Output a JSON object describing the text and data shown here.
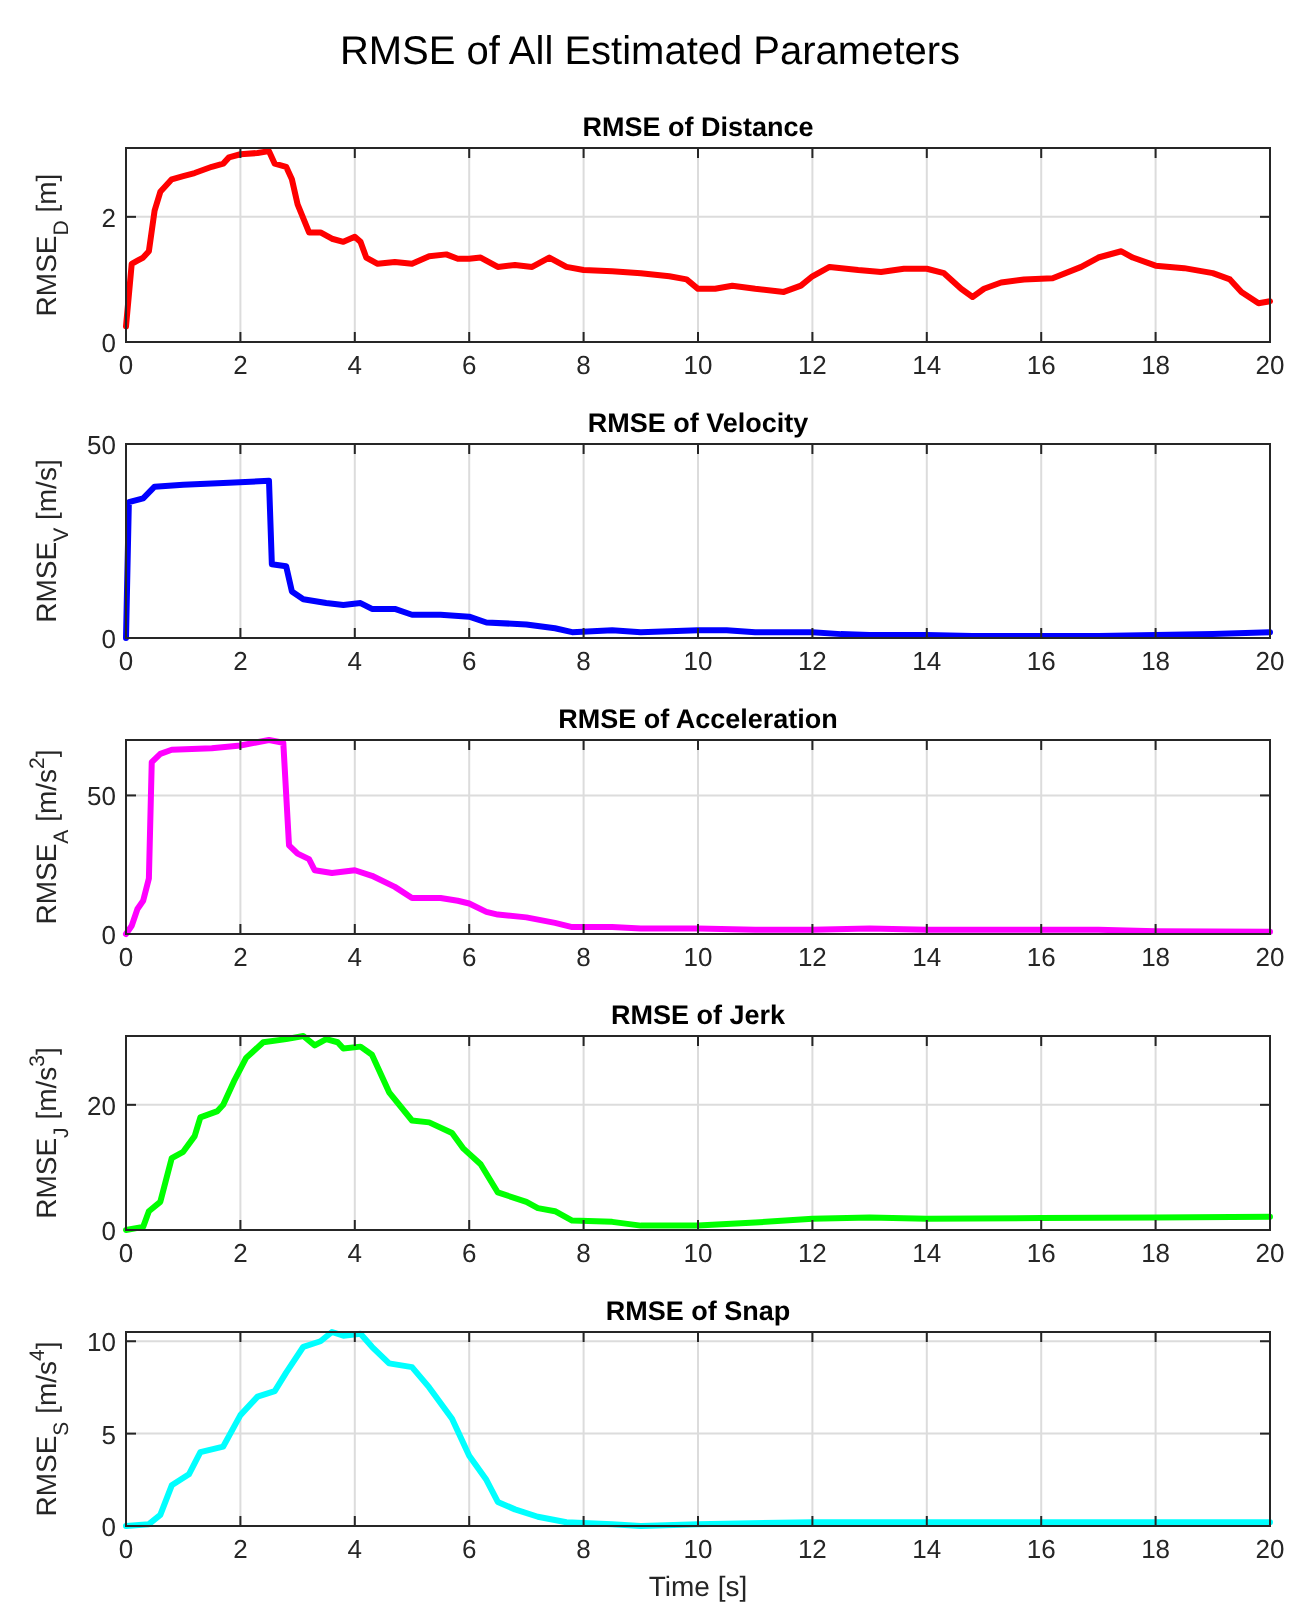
{
  "chart_data": [
    {
      "type": "other",
      "title": "RMSE of All Estimated Parameters"
    },
    {
      "type": "line",
      "title": "RMSE of Distance",
      "ylabel": "RMSE$_{D}$ [m]",
      "xlim": [
        0,
        20
      ],
      "xticks": [
        0,
        2,
        4,
        6,
        8,
        10,
        12,
        14,
        16,
        18,
        20
      ],
      "ylim": [
        0,
        3.1
      ],
      "yticks": [
        0,
        2
      ],
      "grid": true,
      "marker": "none",
      "line_style": "solid",
      "x": [
        0,
        0.1,
        0.2,
        0.3,
        0.4,
        0.5,
        0.6,
        0.8,
        1,
        1.2,
        1.5,
        1.7,
        1.8,
        2,
        2.3,
        2.5,
        2.6,
        2.8,
        2.9,
        3.0,
        3.2,
        3.4,
        3.6,
        3.8,
        4,
        4.1,
        4.2,
        4.4,
        4.7,
        5,
        5.3,
        5.6,
        5.8,
        6,
        6.2,
        6.5,
        6.8,
        7.1,
        7.4,
        7.7,
        8,
        8.5,
        9,
        9.5,
        9.8,
        10,
        10.3,
        10.6,
        11,
        11.5,
        11.8,
        12,
        12.3,
        12.8,
        13.2,
        13.6,
        14,
        14.3,
        14.6,
        14.8,
        15,
        15.3,
        15.7,
        16.2,
        16.7,
        17,
        17.4,
        17.6,
        18,
        18.5,
        19,
        19.3,
        19.5,
        19.8,
        20
      ],
      "series": [
        {
          "color": "#ff0000",
          "values": [
            0.25,
            1.25,
            1.3,
            1.35,
            1.45,
            2.1,
            2.4,
            2.6,
            2.65,
            2.7,
            2.8,
            2.85,
            2.95,
            3.0,
            3.02,
            3.05,
            2.85,
            2.8,
            2.6,
            2.2,
            1.75,
            1.75,
            1.65,
            1.6,
            1.68,
            1.6,
            1.35,
            1.25,
            1.28,
            1.25,
            1.37,
            1.4,
            1.33,
            1.33,
            1.35,
            1.2,
            1.23,
            1.2,
            1.35,
            1.2,
            1.15,
            1.13,
            1.1,
            1.05,
            1.0,
            0.85,
            0.85,
            0.9,
            0.85,
            0.8,
            0.9,
            1.05,
            1.2,
            1.15,
            1.12,
            1.17,
            1.17,
            1.1,
            0.85,
            0.72,
            0.85,
            0.95,
            1.0,
            1.02,
            1.2,
            1.35,
            1.45,
            1.35,
            1.22,
            1.18,
            1.1,
            1.0,
            0.8,
            0.62,
            0.65
          ]
        }
      ]
    },
    {
      "type": "line",
      "title": "RMSE of Velocity",
      "ylabel": "RMSE$_{V}$ [m/s]",
      "xlim": [
        0,
        20
      ],
      "xticks": [
        0,
        2,
        4,
        6,
        8,
        10,
        12,
        14,
        16,
        18,
        20
      ],
      "ylim": [
        0,
        50
      ],
      "yticks": [
        0,
        50
      ],
      "grid": true,
      "marker": "none",
      "line_style": "solid",
      "x": [
        0,
        0.05,
        0.3,
        0.5,
        1,
        1.8,
        2.5,
        2.55,
        2.8,
        2.9,
        3.1,
        3.5,
        3.8,
        4.1,
        4.3,
        4.7,
        5,
        5.5,
        6,
        6.3,
        7,
        7.5,
        7.8,
        8.5,
        9,
        10,
        10.5,
        11,
        12,
        12.5,
        13,
        14,
        14.8,
        16,
        17,
        18,
        19,
        20
      ],
      "series": [
        {
          "color": "#0000ff",
          "values": [
            0,
            35,
            36,
            39,
            39.5,
            40,
            40.5,
            19,
            18.5,
            12,
            10,
            9,
            8.5,
            9,
            7.5,
            7.5,
            6,
            6,
            5.5,
            4,
            3.5,
            2.5,
            1.5,
            2,
            1.5,
            2,
            2,
            1.5,
            1.5,
            1,
            0.8,
            0.8,
            0.5,
            0.5,
            0.5,
            0.8,
            1,
            1.5
          ]
        }
      ]
    },
    {
      "type": "line",
      "title": "RMSE of Acceleration",
      "ylabel": "RMSE$_{A}$ [m/s$^{2}$]",
      "xlim": [
        0,
        20
      ],
      "xticks": [
        0,
        2,
        4,
        6,
        8,
        10,
        12,
        14,
        16,
        18,
        20
      ],
      "ylim": [
        0,
        70
      ],
      "yticks": [
        0,
        50
      ],
      "grid": true,
      "marker": "none",
      "line_style": "solid",
      "x": [
        0,
        0.1,
        0.2,
        0.3,
        0.4,
        0.45,
        0.6,
        0.8,
        1.5,
        2,
        2.5,
        2.75,
        2.85,
        3,
        3.2,
        3.3,
        3.6,
        4,
        4.3,
        4.7,
        5,
        5.5,
        5.8,
        6,
        6.3,
        6.5,
        7,
        7.5,
        7.8,
        8.5,
        9,
        10,
        11,
        12,
        13,
        14,
        15,
        17,
        18,
        20
      ],
      "series": [
        {
          "color": "#ff00ff",
          "values": [
            0,
            3,
            9,
            12,
            20,
            62,
            65,
            66.5,
            67,
            68,
            70,
            69,
            32,
            29,
            27,
            23,
            22,
            23,
            21,
            17,
            13,
            13,
            12,
            11,
            8,
            7,
            6,
            4,
            2.5,
            2.5,
            2,
            2,
            1.5,
            1.5,
            2,
            1.5,
            1.5,
            1.5,
            1,
            0.8
          ]
        }
      ]
    },
    {
      "type": "line",
      "title": "RMSE of Jerk",
      "ylabel": "RMSE$_{J}$ [m/s$^{3}$]",
      "xlim": [
        0,
        20
      ],
      "xticks": [
        0,
        2,
        4,
        6,
        8,
        10,
        12,
        14,
        16,
        18,
        20
      ],
      "ylim": [
        0,
        31
      ],
      "yticks": [
        0,
        20
      ],
      "grid": true,
      "marker": "none",
      "line_style": "solid",
      "x": [
        0,
        0.3,
        0.4,
        0.6,
        0.8,
        1,
        1.2,
        1.3,
        1.6,
        1.7,
        1.9,
        2.1,
        2.4,
        2.8,
        3.1,
        3.3,
        3.5,
        3.7,
        3.8,
        4.1,
        4.3,
        4.6,
        5,
        5.3,
        5.7,
        5.9,
        6.2,
        6.5,
        7,
        7.2,
        7.5,
        7.8,
        8.5,
        9,
        10,
        11,
        12,
        13,
        14,
        16,
        18,
        20
      ],
      "series": [
        {
          "color": "#00ff00",
          "values": [
            0,
            0.5,
            3,
            4.5,
            11.5,
            12.5,
            15,
            18,
            19,
            20,
            24,
            27.5,
            30,
            30.5,
            31,
            29.5,
            30.5,
            30,
            29,
            29.3,
            28,
            22,
            17.5,
            17.2,
            15.5,
            13,
            10.5,
            6,
            4.5,
            3.5,
            3,
            1.5,
            1.3,
            0.7,
            0.7,
            1.2,
            1.8,
            2,
            1.8,
            1.9,
            2,
            2.1
          ]
        }
      ]
    },
    {
      "type": "line",
      "title": "RMSE of Snap",
      "xlabel": "Time [s]",
      "ylabel": "RMSE$_{S}$ [m/s$^{4}$]",
      "xlim": [
        0,
        20
      ],
      "xticks": [
        0,
        2,
        4,
        6,
        8,
        10,
        12,
        14,
        16,
        18,
        20
      ],
      "ylim": [
        0,
        10.5
      ],
      "yticks": [
        0,
        5,
        10
      ],
      "grid": true,
      "marker": "none",
      "line_style": "solid",
      "x": [
        0,
        0.4,
        0.6,
        0.8,
        1.1,
        1.3,
        1.7,
        2,
        2.3,
        2.6,
        2.8,
        3.1,
        3.4,
        3.6,
        3.8,
        4.1,
        4.3,
        4.6,
        5,
        5.3,
        5.7,
        6,
        6.3,
        6.5,
        6.8,
        7.2,
        7.7,
        8.5,
        9,
        10,
        12,
        20
      ],
      "series": [
        {
          "color": "#00ffff",
          "values": [
            0,
            0.1,
            0.6,
            2.2,
            2.8,
            4,
            4.3,
            6,
            7,
            7.3,
            8.3,
            9.7,
            10,
            10.5,
            10.3,
            10.4,
            9.7,
            8.8,
            8.6,
            7.5,
            5.8,
            3.8,
            2.5,
            1.3,
            0.9,
            0.5,
            0.2,
            0.1,
            0,
            0.1,
            0.2,
            0.2
          ]
        }
      ]
    }
  ]
}
